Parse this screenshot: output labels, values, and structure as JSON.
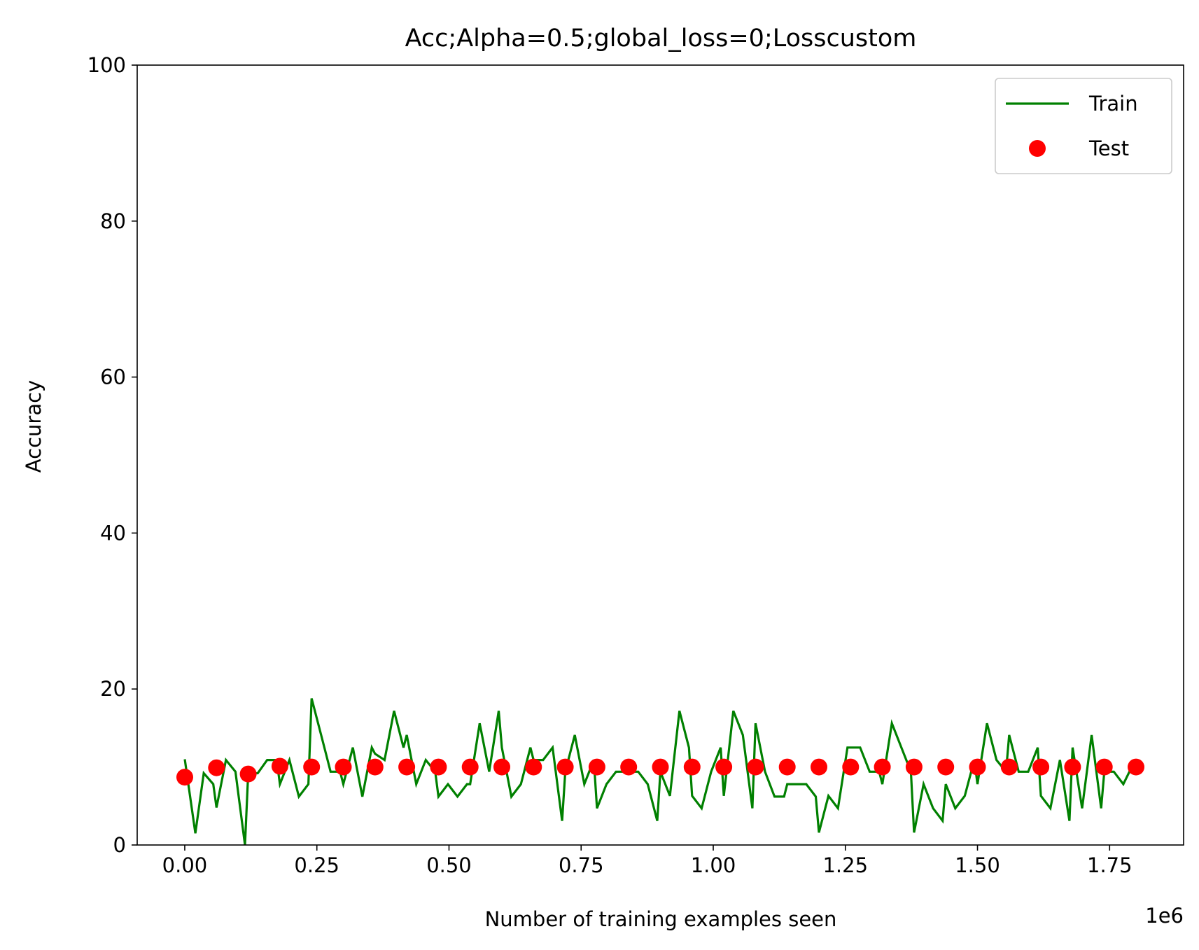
{
  "chart_data": {
    "type": "line",
    "title": "Acc;Alpha=0.5;global_loss=0;Losscustom",
    "xlabel": "Number of training examples seen",
    "ylabel": "Accuracy",
    "x_offset_label": "1e6",
    "xlim": [
      -90000,
      1890000
    ],
    "ylim": [
      0,
      100
    ],
    "x_ticks": [
      0,
      250000,
      500000,
      750000,
      1000000,
      1250000,
      1500000,
      1750000
    ],
    "x_tick_labels": [
      "0.00",
      "0.25",
      "0.50",
      "0.75",
      "1.00",
      "1.25",
      "1.50",
      "1.75"
    ],
    "y_ticks": [
      0,
      20,
      40,
      60,
      80,
      100
    ],
    "y_tick_labels": [
      "0",
      "20",
      "40",
      "60",
      "80",
      "100"
    ],
    "grid": false,
    "legend_position": "top-right",
    "series": [
      {
        "name": "Train",
        "kind": "line",
        "color": "#008000",
        "x": [
          0,
          20000,
          36000,
          54000,
          60000,
          78000,
          96000,
          114000,
          120000,
          138000,
          156000,
          174000,
          180000,
          198000,
          216000,
          234000,
          240000,
          258000,
          276000,
          294000,
          300000,
          318000,
          336000,
          354000,
          360000,
          378000,
          396000,
          414000,
          420000,
          438000,
          456000,
          474000,
          480000,
          498000,
          516000,
          534000,
          540000,
          558000,
          576000,
          594000,
          600000,
          618000,
          636000,
          654000,
          660000,
          678000,
          696000,
          714000,
          720000,
          738000,
          756000,
          774000,
          780000,
          798000,
          816000,
          834000,
          840000,
          858000,
          876000,
          894000,
          900000,
          918000,
          936000,
          954000,
          960000,
          978000,
          996000,
          1014000,
          1020000,
          1038000,
          1056000,
          1074000,
          1080000,
          1098000,
          1116000,
          1134000,
          1140000,
          1158000,
          1176000,
          1194000,
          1200000,
          1218000,
          1236000,
          1254000,
          1260000,
          1278000,
          1296000,
          1314000,
          1320000,
          1338000,
          1356000,
          1374000,
          1380000,
          1398000,
          1416000,
          1434000,
          1440000,
          1458000,
          1476000,
          1494000,
          1500000,
          1518000,
          1536000,
          1554000,
          1560000,
          1578000,
          1596000,
          1614000,
          1620000,
          1638000,
          1656000,
          1674000,
          1680000,
          1698000,
          1716000,
          1734000,
          1740000,
          1758000,
          1776000,
          1794000
        ],
        "values": [
          11,
          1.5,
          9.2,
          7.8,
          4.8,
          10.9,
          9.4,
          0,
          9.2,
          9.2,
          10.9,
          10.9,
          7.8,
          10.9,
          6.2,
          7.8,
          18.8,
          14.1,
          9.4,
          9.4,
          7.8,
          12.5,
          6.2,
          12.5,
          11.7,
          10.9,
          17.2,
          12.5,
          14.1,
          7.8,
          10.9,
          9.4,
          6.2,
          7.8,
          6.2,
          7.8,
          7.8,
          15.6,
          9.4,
          17.2,
          12.5,
          6.2,
          7.8,
          12.5,
          10.9,
          10.9,
          12.5,
          3.1,
          9.4,
          14.1,
          7.8,
          10.9,
          4.7,
          7.8,
          9.4,
          9.4,
          9.4,
          9.4,
          7.8,
          3.1,
          9.4,
          6.3,
          17.2,
          12.5,
          6.3,
          4.7,
          9.4,
          12.5,
          6.3,
          17.2,
          14.1,
          4.7,
          15.6,
          9.4,
          6.2,
          6.2,
          7.8,
          7.8,
          7.8,
          6.2,
          1.6,
          6.3,
          4.7,
          12.5,
          12.5,
          12.5,
          9.4,
          9.4,
          7.8,
          15.6,
          12.5,
          9.4,
          1.6,
          7.8,
          4.7,
          3.1,
          7.8,
          4.7,
          6.3,
          10.9,
          7.8,
          15.6,
          10.9,
          9.4,
          14.1,
          9.4,
          9.4,
          12.5,
          6.3,
          4.7,
          10.9,
          3.1,
          12.5,
          4.7,
          14.1,
          4.7,
          9.4,
          9.4,
          7.8,
          10.3
        ]
      },
      {
        "name": "Test",
        "kind": "scatter",
        "color": "#ff0000",
        "x": [
          0,
          60000,
          120000,
          180000,
          240000,
          300000,
          360000,
          420000,
          480000,
          540000,
          600000,
          660000,
          720000,
          780000,
          840000,
          900000,
          960000,
          1020000,
          1080000,
          1140000,
          1200000,
          1260000,
          1320000,
          1380000,
          1440000,
          1500000,
          1560000,
          1620000,
          1680000,
          1740000,
          1800000
        ],
        "values": [
          8.7,
          9.9,
          9.1,
          10.1,
          10.0,
          10.0,
          10.0,
          10.0,
          10.0,
          10.0,
          10.0,
          10.0,
          10.0,
          10.0,
          10.0,
          10.0,
          10.0,
          10.0,
          10.0,
          10.0,
          10.0,
          10.0,
          10.0,
          10.0,
          10.0,
          10.0,
          10.0,
          10.0,
          10.0,
          10.0,
          10.0
        ]
      }
    ]
  }
}
